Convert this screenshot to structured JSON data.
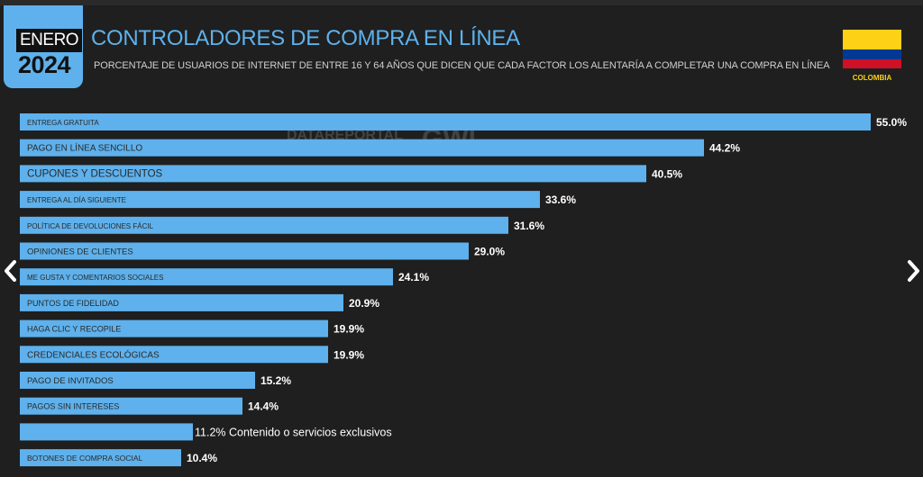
{
  "header": {
    "month": "ENERO",
    "year": "2024",
    "title": "CONTROLADORES DE COMPRA EN LÍNEA",
    "subtitle": "PORCENTAJE DE USUARIOS DE INTERNET DE ENTRE 16 Y 64 AÑOS QUE DICEN QUE CADA FACTOR LOS ALENTARÍA A COMPLETAR UNA COMPRA EN LÍNEA",
    "country": "COLOMBIA"
  },
  "watermark": {
    "brand1": "DATAREPORTAL",
    "brand2": "GWI."
  },
  "colors": {
    "accent": "#5eb1ec",
    "background": "#1f1f1f",
    "label_text": "#2a2a2a"
  },
  "nav": {
    "prev_icon": "chevron-left-icon",
    "next_icon": "chevron-right-icon"
  },
  "chart_data": {
    "type": "bar",
    "orientation": "horizontal",
    "title": "CONTROLADORES DE COMPRA EN LÍNEA",
    "xlim": [
      0,
      55
    ],
    "value_format": "percent",
    "categories": [
      "ENTREGA GRATUITA",
      "PAGO EN LÍNEA SENCILLO",
      "CUPONES Y DESCUENTOS",
      "ENTREGA AL DÍA SIGUIENTE",
      "POLÍTICA DE DEVOLUCIONES FÁCIL",
      "OPINIONES DE CLIENTES",
      "ME GUSTA Y COMENTARIOS SOCIALES",
      "PUNTOS DE FIDELIDAD",
      "HAGA CLIC Y RECOPILE",
      "CREDENCIALES ECOLÓGICAS",
      "PAGO DE INVITADOS",
      "PAGOS SIN INTERESES",
      "Contenido o servicios exclusivos",
      "BOTONES DE COMPRA SOCIAL"
    ],
    "values": [
      55.0,
      44.2,
      40.5,
      33.6,
      31.6,
      29.0,
      24.1,
      20.9,
      19.9,
      19.9,
      15.2,
      14.4,
      11.2,
      10.4
    ],
    "value_labels": [
      "55.0%",
      "44.2%",
      "40.5%",
      "33.6%",
      "31.6%",
      "29.0%",
      "24.1%",
      "20.9%",
      "19.9%",
      "19.9%",
      "15.2%",
      "14.4%",
      "11.2%",
      "10.4%"
    ],
    "label_outside": [
      false,
      false,
      false,
      false,
      false,
      false,
      false,
      false,
      false,
      false,
      false,
      false,
      true,
      false
    ]
  }
}
